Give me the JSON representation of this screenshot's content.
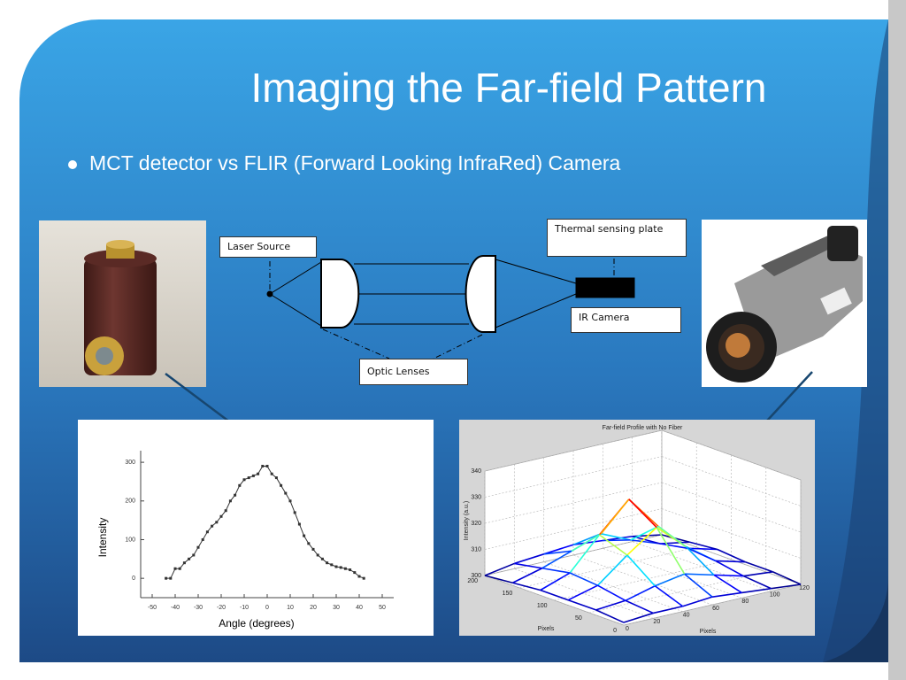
{
  "title": "Imaging the Far-field Pattern",
  "bullets": [
    "MCT detector vs FLIR (Forward Looking InfraRed) Camera"
  ],
  "diagram": {
    "nodes": [
      {
        "label": "Laser Source"
      },
      {
        "label": "Thermal sensing plate"
      },
      {
        "label": "IR Camera"
      },
      {
        "label": "Optic Lenses"
      }
    ]
  },
  "chart_data": [
    {
      "type": "line",
      "xlabel": "Angle (degrees)",
      "ylabel": "Intensity",
      "color": "#333333",
      "x": [
        -44,
        -42,
        -40,
        -38,
        -36,
        -34,
        -32,
        -30,
        -28,
        -26,
        -24,
        -22,
        -20,
        -18,
        -16,
        -14,
        -12,
        -10,
        -8,
        -6,
        -4,
        -2,
        0,
        2,
        4,
        6,
        8,
        10,
        12,
        14,
        16,
        18,
        20,
        22,
        24,
        26,
        28,
        30,
        32,
        34,
        36,
        38,
        40,
        42
      ],
      "values": [
        0,
        0,
        25,
        25,
        40,
        50,
        60,
        80,
        100,
        120,
        135,
        145,
        160,
        175,
        200,
        215,
        240,
        255,
        260,
        265,
        270,
        290,
        290,
        270,
        260,
        240,
        220,
        200,
        170,
        140,
        110,
        90,
        75,
        60,
        50,
        40,
        35,
        30,
        28,
        25,
        22,
        15,
        5,
        0
      ],
      "xlim": [
        -55,
        55
      ],
      "ylim": [
        -50,
        330
      ],
      "xticks": [
        -50,
        -40,
        -30,
        -20,
        -10,
        0,
        10,
        20,
        30,
        40,
        50
      ],
      "yticks": [
        0,
        100,
        200,
        300
      ]
    },
    {
      "type": "surface",
      "title": "Far-field Profile with No Fiber",
      "xlabel": "Pixels",
      "ylabel": "Pixels",
      "zlabel": "Intensity (a.u.)",
      "colormap": "jet",
      "grid": true,
      "x": [
        0,
        20,
        40,
        60,
        80,
        100,
        120
      ],
      "y": [
        0,
        40,
        80,
        120,
        160,
        200
      ],
      "values": [
        [
          301,
          302,
          302,
          303,
          302,
          301,
          300
        ],
        [
          302,
          303,
          306,
          308,
          305,
          302,
          301
        ],
        [
          302,
          305,
          314,
          322,
          312,
          304,
          301
        ],
        [
          302,
          306,
          318,
          329,
          316,
          305,
          302
        ],
        [
          301,
          304,
          308,
          312,
          307,
          303,
          301
        ],
        [
          300,
          302,
          303,
          304,
          303,
          302,
          300
        ]
      ],
      "xlim": [
        0,
        120
      ],
      "ylim": [
        0,
        200
      ],
      "zlim": [
        300,
        340
      ],
      "xticks": [
        0,
        20,
        40,
        60,
        80,
        100,
        120
      ],
      "yticks": [
        0,
        50,
        100,
        150,
        200
      ],
      "zticks": [
        300,
        310,
        320,
        330,
        340
      ]
    }
  ]
}
